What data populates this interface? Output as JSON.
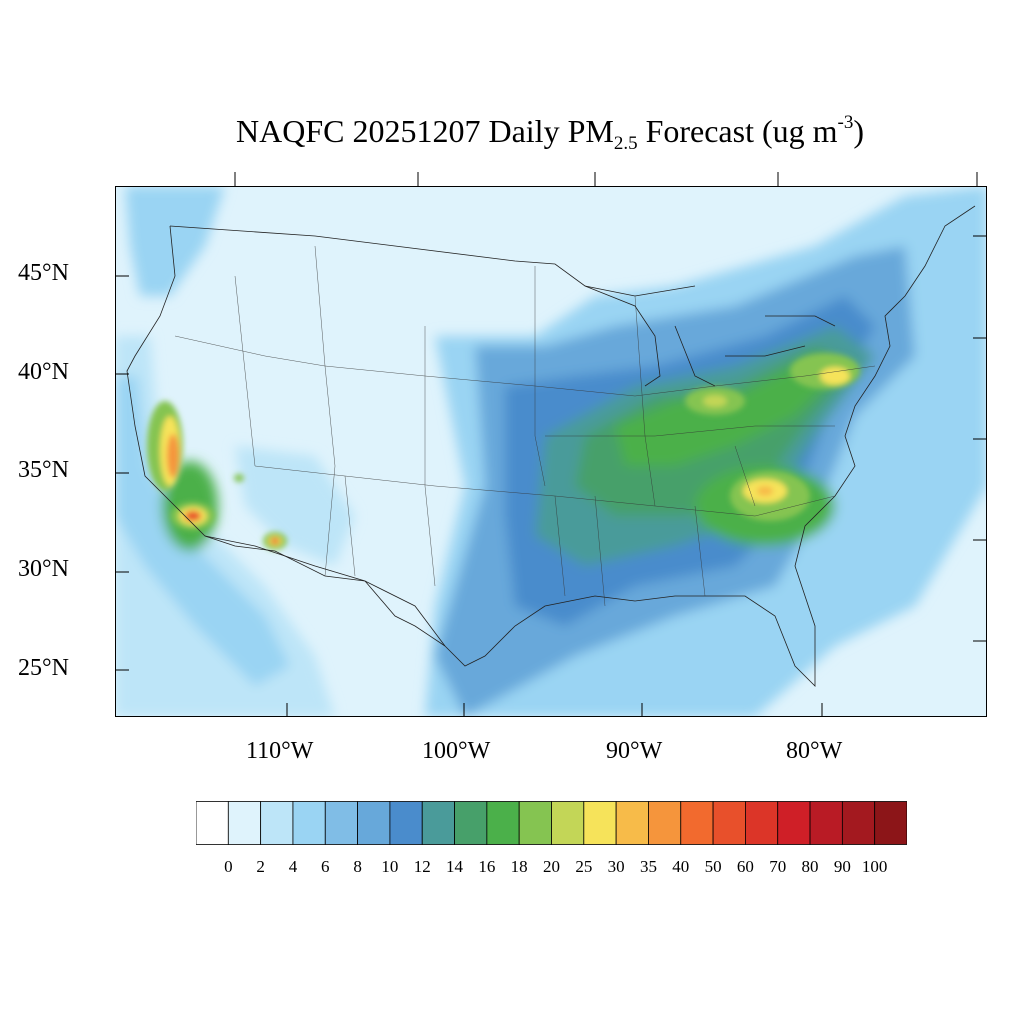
{
  "title": {
    "prefix": "NAQFC 20251207 Daily PM",
    "subscript": "2.5",
    "middle": " Forecast (ug m",
    "superscript": "-3",
    "suffix": ")"
  },
  "map": {
    "variable": "PM2.5",
    "region": "CONUS",
    "lat_ticks": [
      "45°N",
      "40°N",
      "35°N",
      "30°N",
      "25°N"
    ],
    "lon_ticks": [
      "110°W",
      "100°W",
      "90°W",
      "80°W"
    ]
  },
  "legend": {
    "colors": [
      "#ffffff",
      "#dff3fc",
      "#bde5f8",
      "#9ad4f3",
      "#80bde6",
      "#67a8da",
      "#4a8ccc",
      "#4a9b9a",
      "#47a06a",
      "#4bb04a",
      "#85c451",
      "#c3d657",
      "#f6e35a",
      "#f7bb49",
      "#f5953c",
      "#f26a2e",
      "#e8502b",
      "#dc3528",
      "#cf1f27",
      "#b91b25",
      "#a3191f",
      "#8c1518"
    ],
    "labels": [
      "0",
      "2",
      "4",
      "6",
      "8",
      "10",
      "12",
      "14",
      "16",
      "18",
      "20",
      "25",
      "30",
      "35",
      "40",
      "50",
      "60",
      "70",
      "80",
      "90",
      "100"
    ]
  }
}
